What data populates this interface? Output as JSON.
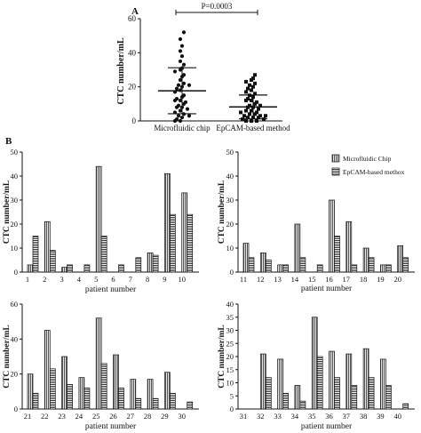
{
  "panel_a_label": "A",
  "panel_b_label": "B",
  "legend": {
    "microfluidic": "Microfluidic Chip",
    "epcam": "EpCAM-based methox"
  },
  "chart_data": [
    {
      "type": "scatter",
      "panel": "A",
      "ylabel": "CTC number/mL",
      "categories": [
        "Microfluidic chip",
        "EpCAM-based method"
      ],
      "ylim": [
        0,
        60
      ],
      "yticks": [
        0,
        20,
        40,
        60
      ],
      "annotation": "P=0.0003",
      "series": [
        {
          "mean": 17.7,
          "sd": 13.5,
          "values": [
            52,
            48,
            44,
            41,
            38,
            35,
            33,
            31,
            30,
            29,
            27,
            26,
            24,
            22,
            21,
            21,
            20,
            19,
            18,
            17,
            15,
            14,
            13,
            12,
            12,
            11,
            10,
            9,
            8,
            8,
            7,
            6,
            5,
            4,
            3,
            3,
            2,
            1,
            0,
            0
          ]
        },
        {
          "mean": 8.2,
          "sd": 7.0,
          "values": [
            27,
            25,
            24,
            23,
            22,
            21,
            20,
            19,
            18,
            17,
            16,
            15,
            14,
            13,
            12,
            12,
            11,
            10,
            9,
            9,
            8,
            8,
            7,
            6,
            6,
            5,
            5,
            4,
            4,
            3,
            3,
            3,
            2,
            2,
            2,
            1,
            1,
            0,
            0,
            0
          ]
        }
      ]
    },
    {
      "type": "bar",
      "ylabel": "CTC number/mL",
      "xlabel": "patient number",
      "categories": [
        "1",
        "2",
        "3",
        "4",
        "5",
        "6",
        "7",
        "8",
        "9",
        "10"
      ],
      "ylim": [
        0,
        50
      ],
      "yticks": [
        0,
        10,
        20,
        30,
        40,
        50
      ],
      "series": [
        {
          "name": "Microfluidic Chip",
          "values": [
            3,
            21,
            2,
            0,
            44,
            0,
            0,
            8,
            41,
            33
          ]
        },
        {
          "name": "EpCAM-based methox",
          "values": [
            15,
            9,
            3,
            3,
            15,
            3,
            6,
            7,
            24,
            24
          ]
        }
      ]
    },
    {
      "type": "bar",
      "ylabel": "CTC number/mL",
      "xlabel": "patient number",
      "categories": [
        "11",
        "12",
        "13",
        "14",
        "15",
        "16",
        "17",
        "18",
        "19",
        "20"
      ],
      "ylim": [
        0,
        50
      ],
      "yticks": [
        0,
        10,
        20,
        30,
        40,
        50
      ],
      "series": [
        {
          "name": "Microfluidic Chip",
          "values": [
            12,
            8,
            3,
            20,
            0,
            30,
            21,
            10,
            3,
            11
          ]
        },
        {
          "name": "EpCAM-based methox",
          "values": [
            6,
            5,
            3,
            6,
            3,
            15,
            3,
            6,
            3,
            6
          ]
        }
      ]
    },
    {
      "type": "bar",
      "ylabel": "CTC number/mL",
      "xlabel": "patient number",
      "categories": [
        "21",
        "22",
        "23",
        "24",
        "25",
        "26",
        "27",
        "28",
        "29",
        "30"
      ],
      "ylim": [
        0,
        60
      ],
      "yticks": [
        0,
        20,
        40,
        60
      ],
      "series": [
        {
          "name": "Microfluidic Chip",
          "values": [
            20,
            45,
            30,
            18,
            52,
            31,
            17,
            17,
            21,
            0
          ]
        },
        {
          "name": "EpCAM-based methox",
          "values": [
            9,
            23,
            14,
            12,
            26,
            12,
            6,
            6,
            9,
            4
          ]
        }
      ]
    },
    {
      "type": "bar",
      "ylabel": "CTC number/mL",
      "xlabel": "patient number",
      "categories": [
        "31",
        "32",
        "33",
        "34",
        "35",
        "36",
        "37",
        "38",
        "39",
        "40"
      ],
      "ylim": [
        0,
        40
      ],
      "yticks": [
        0,
        5,
        10,
        15,
        20,
        25,
        30,
        35,
        40
      ],
      "series": [
        {
          "name": "Microfluidic Chip",
          "values": [
            0,
            21,
            19,
            9,
            35,
            22,
            21,
            23,
            19,
            0
          ]
        },
        {
          "name": "EpCAM-based methox",
          "values": [
            0,
            12,
            6,
            3,
            20,
            12,
            9,
            12,
            9,
            2
          ]
        }
      ]
    }
  ]
}
